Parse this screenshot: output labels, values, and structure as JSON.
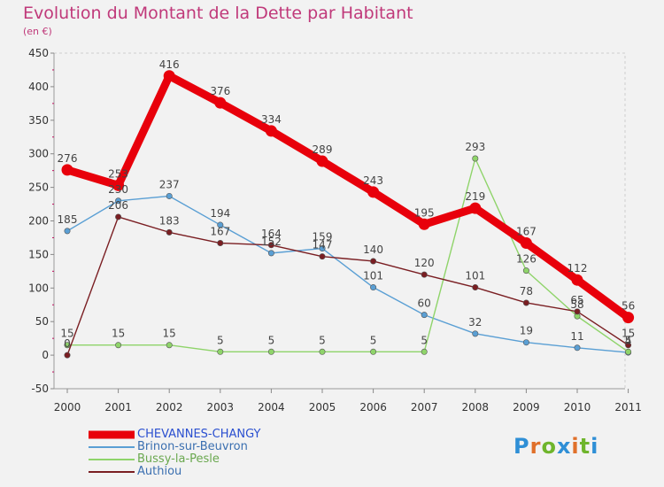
{
  "title": "Evolution du Montant de la Dette par Habitant",
  "unit_label": "(en €)",
  "brand": {
    "letters": [
      "P",
      "r",
      "o",
      "x",
      "i",
      "t",
      "i"
    ],
    "colors": [
      "#2f8fd6",
      "#e0702a",
      "#6fb52c",
      "#2f8fd6",
      "#e0702a",
      "#6fb52c",
      "#2f8fd6"
    ]
  },
  "chart_data": {
    "type": "line",
    "x": [
      "2000",
      "2001",
      "2002",
      "2003",
      "2004",
      "2005",
      "2006",
      "2007",
      "2008",
      "2009",
      "2010",
      "2011"
    ],
    "ylim": [
      -50,
      450
    ],
    "yticks": [
      -50,
      0,
      50,
      100,
      150,
      200,
      250,
      300,
      350,
      400,
      450
    ],
    "grid": false,
    "legend_position": "bottom-left",
    "series": [
      {
        "name": "CHEVANNES-CHANGY",
        "color": "#e8000b",
        "values": [
          276,
          253,
          416,
          376,
          334,
          289,
          243,
          195,
          219,
          167,
          112,
          56
        ],
        "labels": [
          "276",
          "253",
          "416",
          "376",
          "334",
          "289",
          "243",
          "195",
          "219",
          "167",
          "112",
          "56"
        ]
      },
      {
        "name": "Brinon-sur-Beuvron",
        "color": "#5a9fd4",
        "values": [
          185,
          230,
          237,
          194,
          152,
          159,
          101,
          60,
          32,
          19,
          11,
          4
        ],
        "labels": [
          "185",
          "230",
          "237",
          "194",
          "152",
          "159",
          "101",
          "60",
          "32",
          "19",
          "11",
          "4"
        ]
      },
      {
        "name": "Bussy-la-Pesle",
        "color": "#8fd46a",
        "values": [
          15,
          15,
          15,
          5,
          5,
          5,
          5,
          5,
          293,
          126,
          58,
          5
        ],
        "labels": [
          "15",
          "15",
          "15",
          "5",
          "5",
          "5",
          "5",
          "5",
          "293",
          "126",
          "58",
          "5"
        ]
      },
      {
        "name": "Authiou",
        "color": "#7a1e22",
        "values": [
          0,
          206,
          183,
          167,
          164,
          147,
          140,
          120,
          101,
          78,
          65,
          15
        ],
        "labels": [
          "0",
          "206",
          "183",
          "167",
          "164",
          "147",
          "140",
          "120",
          "101",
          "78",
          "65",
          "15"
        ]
      }
    ]
  }
}
